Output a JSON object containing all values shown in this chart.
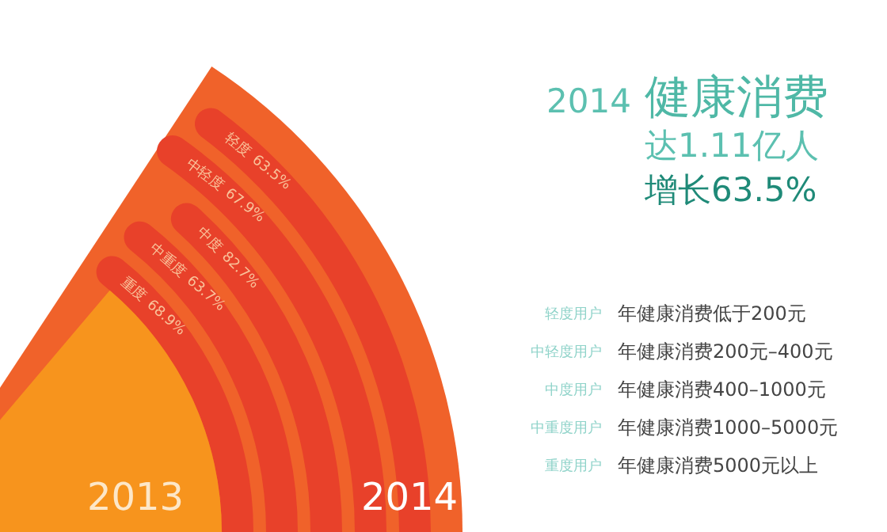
{
  "chart_data": {
    "type": "other",
    "title": "健康消费",
    "subtitle": "达1.11亿人",
    "categories": [
      "轻度",
      "中轻度",
      "中度",
      "中重度",
      "重度"
    ],
    "values": [
      63.5,
      67.9,
      82.7,
      63.7,
      68.9
    ],
    "data_labels": true,
    "value_labels": [
      "63.5%",
      "67.9%",
      "82.7%",
      "63.7%",
      "68.9%"
    ],
    "colors": [
      "#e8412a",
      "#e8412a",
      "#e8412a",
      "#e8412a",
      "#e8412a"
    ],
    "annotations": [
      "2014",
      "增长63.5%",
      "2013",
      "2014",
      "轻度用户",
      "年健康消费低于200元",
      "中轻度用户",
      "年健康消费200元–400元",
      "中度用户",
      "年健康消费400–1000元",
      "中重度用户",
      "年健康消费1000–5000元",
      "重度用户",
      "年健康消费5000元以上"
    ]
  }
}
